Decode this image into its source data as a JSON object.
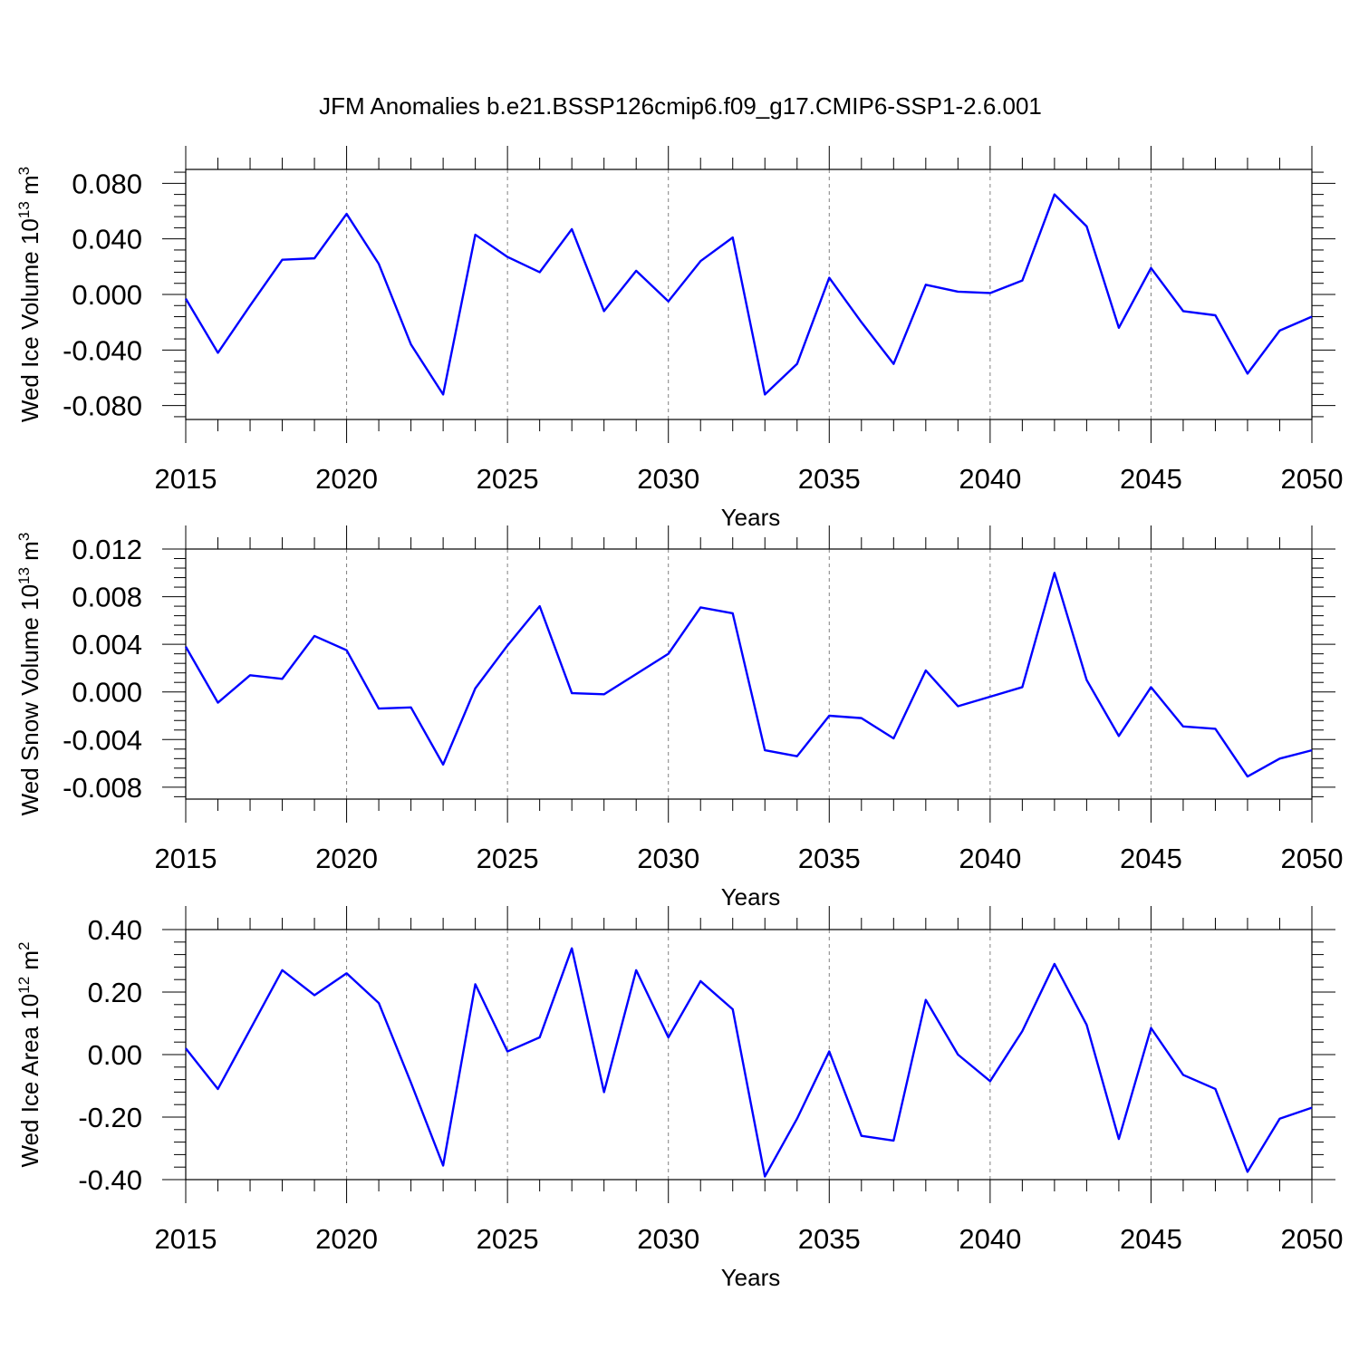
{
  "title": "JFM Anomalies b.e21.BSSP126cmip6.f09_g17.CMIP6-SSP1-2.6.001",
  "chart_data": [
    {
      "type": "line",
      "ylabel_text": "Wed Ice Volume 10",
      "ylabel_exp": "13",
      "ylabel_unit": "m",
      "ylabel_unit_exp": "3",
      "xlabel": "Years",
      "xlim": [
        2015,
        2050
      ],
      "ylim": [
        -0.09,
        0.09
      ],
      "xticks": [
        2015,
        2020,
        2025,
        2030,
        2035,
        2040,
        2045,
        2050
      ],
      "xtick_labels": [
        "2015",
        "2020",
        "2025",
        "2030",
        "2035",
        "2040",
        "2045",
        "2050"
      ],
      "yticks": [
        -0.08,
        -0.04,
        0.0,
        0.04,
        0.08
      ],
      "ytick_labels": [
        "-0.080",
        "-0.040",
        "0.000",
        "0.040",
        "0.080"
      ],
      "grid": "dashed vertical lines at major x ticks",
      "line_color": "#0000ff",
      "x": [
        2015,
        2016,
        2017,
        2018,
        2019,
        2020,
        2021,
        2022,
        2023,
        2024,
        2025,
        2026,
        2027,
        2028,
        2029,
        2030,
        2031,
        2032,
        2033,
        2034,
        2035,
        2036,
        2037,
        2038,
        2039,
        2040,
        2041,
        2042,
        2043,
        2044,
        2045,
        2046,
        2047,
        2048,
        2049,
        2050
      ],
      "values": [
        -0.003,
        -0.042,
        -0.008,
        0.025,
        0.026,
        0.058,
        0.022,
        -0.036,
        -0.072,
        0.043,
        0.027,
        0.016,
        0.047,
        -0.012,
        0.017,
        -0.005,
        0.024,
        0.041,
        -0.072,
        -0.05,
        0.012,
        -0.02,
        -0.05,
        0.007,
        0.002,
        0.001,
        0.01,
        0.072,
        0.049,
        -0.024,
        0.019,
        -0.012,
        -0.015,
        -0.057,
        -0.026,
        -0.016
      ]
    },
    {
      "type": "line",
      "ylabel_text": "Wed Snow Volume 10",
      "ylabel_exp": "13",
      "ylabel_unit": "m",
      "ylabel_unit_exp": "3",
      "xlabel": "Years",
      "xlim": [
        2015,
        2050
      ],
      "ylim": [
        -0.009,
        0.012
      ],
      "xticks": [
        2015,
        2020,
        2025,
        2030,
        2035,
        2040,
        2045,
        2050
      ],
      "xtick_labels": [
        "2015",
        "2020",
        "2025",
        "2030",
        "2035",
        "2040",
        "2045",
        "2050"
      ],
      "yticks": [
        -0.008,
        -0.004,
        0.0,
        0.004,
        0.008,
        0.012
      ],
      "ytick_labels": [
        "-0.008",
        "-0.004",
        "0.000",
        "0.004",
        "0.008",
        "0.012"
      ],
      "grid": "dashed vertical lines at major x ticks",
      "line_color": "#0000ff",
      "x": [
        2015,
        2016,
        2017,
        2018,
        2019,
        2020,
        2021,
        2022,
        2023,
        2024,
        2025,
        2026,
        2027,
        2028,
        2029,
        2030,
        2031,
        2032,
        2033,
        2034,
        2035,
        2036,
        2037,
        2038,
        2039,
        2040,
        2041,
        2042,
        2043,
        2044,
        2045,
        2046,
        2047,
        2048,
        2049,
        2050
      ],
      "values": [
        0.0038,
        -0.0009,
        0.0014,
        0.0011,
        0.0047,
        0.0035,
        -0.0014,
        -0.0013,
        -0.0061,
        0.0003,
        0.0039,
        0.0072,
        -0.0001,
        -0.0002,
        0.0015,
        0.0032,
        0.0071,
        0.0066,
        -0.0049,
        -0.0054,
        -0.002,
        -0.0022,
        -0.0039,
        0.0018,
        -0.0012,
        -0.0004,
        0.0004,
        0.01,
        0.001,
        -0.0037,
        0.0004,
        -0.0029,
        -0.0031,
        -0.0071,
        -0.0056,
        -0.0049
      ]
    },
    {
      "type": "line",
      "ylabel_text": "Wed Ice Area 10",
      "ylabel_exp": "12",
      "ylabel_unit": "m",
      "ylabel_unit_exp": "2",
      "xlabel": "Years",
      "xlim": [
        2015,
        2050
      ],
      "ylim": [
        -0.4,
        0.4
      ],
      "xticks": [
        2015,
        2020,
        2025,
        2030,
        2035,
        2040,
        2045,
        2050
      ],
      "xtick_labels": [
        "2015",
        "2020",
        "2025",
        "2030",
        "2035",
        "2040",
        "2045",
        "2050"
      ],
      "yticks": [
        -0.4,
        -0.2,
        0.0,
        0.2,
        0.4
      ],
      "ytick_labels": [
        "-0.40",
        "-0.20",
        "0.00",
        "0.20",
        "0.40"
      ],
      "grid": "dashed vertical lines at major x ticks",
      "line_color": "#0000ff",
      "x": [
        2015,
        2016,
        2017,
        2018,
        2019,
        2020,
        2021,
        2022,
        2023,
        2024,
        2025,
        2026,
        2027,
        2028,
        2029,
        2030,
        2031,
        2032,
        2033,
        2034,
        2035,
        2036,
        2037,
        2038,
        2039,
        2040,
        2041,
        2042,
        2043,
        2044,
        2045,
        2046,
        2047,
        2048,
        2049,
        2050
      ],
      "values": [
        0.02,
        -0.11,
        0.08,
        0.27,
        0.19,
        0.26,
        0.165,
        -0.09,
        -0.355,
        0.225,
        0.01,
        0.055,
        0.34,
        -0.12,
        0.27,
        0.055,
        0.235,
        0.145,
        -0.39,
        -0.205,
        0.01,
        -0.26,
        -0.275,
        0.175,
        0.0,
        -0.085,
        0.075,
        0.29,
        0.095,
        -0.27,
        0.085,
        -0.065,
        -0.11,
        -0.375,
        -0.205,
        -0.17
      ]
    }
  ]
}
